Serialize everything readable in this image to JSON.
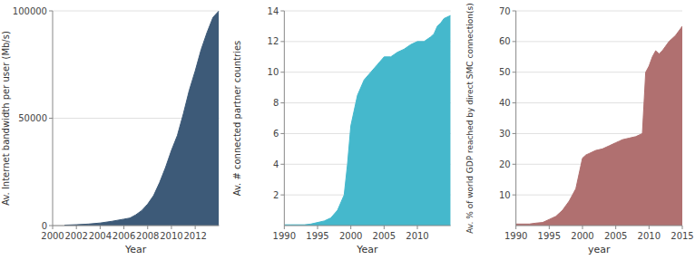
{
  "chart_data": [
    {
      "type": "area",
      "ylabel": "Av. Internet bandwidth per user (Mb/s)",
      "xlabel": "Year",
      "x": [
        2001,
        2002,
        2003,
        2004,
        2005,
        2006,
        2006.5,
        2007,
        2007.5,
        2008,
        2008.5,
        2009,
        2009.5,
        2010,
        2010.5,
        2011,
        2011.5,
        2012,
        2012.5,
        2013,
        2013.5,
        2014
      ],
      "values": [
        200,
        400,
        700,
        1200,
        2000,
        3000,
        3500,
        5000,
        7000,
        10000,
        14000,
        20000,
        27000,
        35000,
        42000,
        52000,
        63000,
        72000,
        82000,
        90000,
        97000,
        100000
      ],
      "color": "#3d5a78",
      "xlim": [
        2000,
        2014
      ],
      "ylim": [
        0,
        100000
      ],
      "xticks": [
        2000,
        2002,
        2004,
        2006,
        2008,
        2010,
        2012
      ],
      "yticks": [
        0,
        50000,
        100000
      ],
      "grid": true
    },
    {
      "type": "area",
      "ylabel": "Av. # connected partner countries",
      "xlabel": "Year",
      "x": [
        1990,
        1991,
        1992,
        1993,
        1994,
        1995,
        1996,
        1997,
        1998,
        1999,
        1999.5,
        2000,
        2000.5,
        2001,
        2002,
        2003,
        2004,
        2005,
        2006,
        2007,
        2008,
        2009,
        2010,
        2011,
        2012,
        2012.5,
        2013,
        2013.5,
        2014,
        2015
      ],
      "values": [
        0.05,
        0.05,
        0.05,
        0.05,
        0.1,
        0.2,
        0.3,
        0.5,
        1.0,
        2.0,
        4.0,
        6.5,
        7.5,
        8.5,
        9.5,
        10.0,
        10.5,
        11.0,
        11.0,
        11.3,
        11.5,
        11.8,
        12.0,
        12.0,
        12.3,
        12.5,
        13.0,
        13.2,
        13.5,
        13.7
      ],
      "color": "#45b8cc",
      "xlim": [
        1990,
        2015
      ],
      "ylim": [
        0,
        14
      ],
      "xticks": [
        1990,
        1995,
        2000,
        2005,
        2010
      ],
      "yticks": [
        2,
        4,
        6,
        8,
        10,
        12,
        14
      ],
      "grid": true
    },
    {
      "type": "area",
      "ylabel": "Av. % of world GDP reached by direct SMC connection(s)",
      "xlabel": "year",
      "x": [
        1990,
        1991,
        1992,
        1993,
        1994,
        1995,
        1996,
        1997,
        1998,
        1999,
        2000,
        2000.5,
        2001,
        2001.5,
        2002,
        2003,
        2004,
        2005,
        2005.5,
        2006,
        2007,
        2008,
        2009,
        2009.5,
        2010,
        2010.5,
        2011,
        2011.5,
        2012,
        2013,
        2014,
        2015
      ],
      "values": [
        0.5,
        0.5,
        0.5,
        0.8,
        1.0,
        2.0,
        3.0,
        5.0,
        8.0,
        12.0,
        22.0,
        23.0,
        23.5,
        24.0,
        24.5,
        25.0,
        26.0,
        27.0,
        27.5,
        28.0,
        28.5,
        29.0,
        30.0,
        50.0,
        52.0,
        55.0,
        57.0,
        56.0,
        57.0,
        60.0,
        62.0,
        65.0
      ],
      "color": "#b07070",
      "xlim": [
        1990,
        2015
      ],
      "ylim": [
        0,
        70
      ],
      "xticks": [
        1990,
        1995,
        2000,
        2005,
        2010,
        2015
      ],
      "yticks": [
        10,
        20,
        30,
        40,
        50,
        60,
        70
      ],
      "grid": true
    }
  ]
}
